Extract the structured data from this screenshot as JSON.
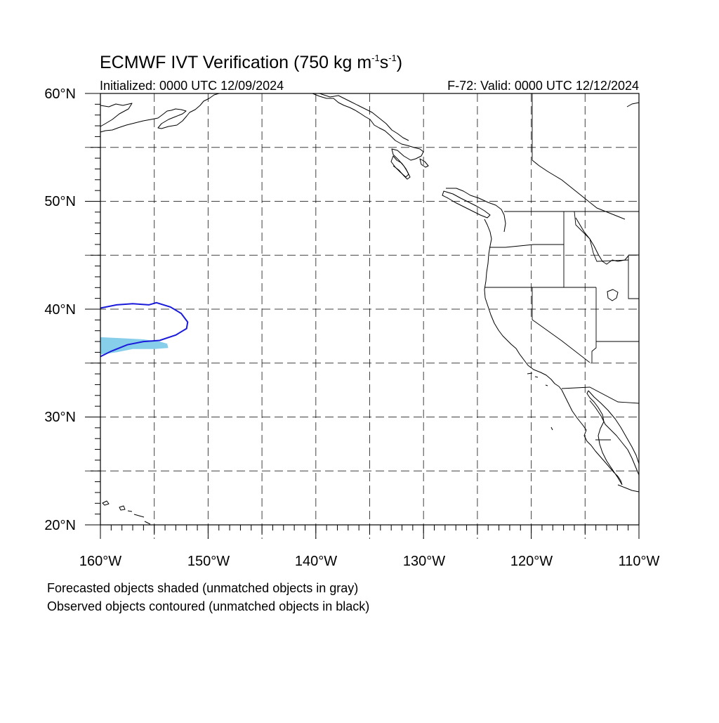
{
  "title_main": "ECMWF IVT Verification (750 kg m",
  "title_sup1": "-1",
  "title_mid": "s",
  "title_sup2": "-1",
  "title_end": ")",
  "initialized": "Initialized: 0000 UTC 12/09/2024",
  "valid": "F-72: Valid: 0000 UTC 12/12/2024",
  "map_extent": {
    "lon_min": -160,
    "lon_max": -110,
    "lat_min": 20,
    "lat_max": 60
  },
  "lat_labels": [
    "20°N",
    "30°N",
    "40°N",
    "50°N",
    "60°N"
  ],
  "lon_labels": [
    "160°W",
    "150°W",
    "140°W",
    "130°W",
    "120°W",
    "110°W"
  ],
  "colors": {
    "forecast_fill": "#87ceeb",
    "observed_contour": "#1a1adb",
    "coastline": "#000000"
  },
  "forecast_object": {
    "lonlat": [
      [
        -160,
        37.4
      ],
      [
        -158,
        37.3
      ],
      [
        -156,
        37.2
      ],
      [
        -154.5,
        37.0
      ],
      [
        -153.8,
        36.8
      ],
      [
        -153.7,
        36.4
      ],
      [
        -155,
        36.3
      ],
      [
        -157,
        36.3
      ],
      [
        -158.5,
        36.0
      ],
      [
        -160,
        35.8
      ]
    ]
  },
  "observed_object": {
    "lonlat": [
      [
        -160,
        40.1
      ],
      [
        -158.5,
        40.4
      ],
      [
        -157,
        40.5
      ],
      [
        -155.5,
        40.4
      ],
      [
        -154.8,
        40.6
      ],
      [
        -153.5,
        40.2
      ],
      [
        -152.5,
        39.6
      ],
      [
        -151.9,
        38.8
      ],
      [
        -152.0,
        38.2
      ],
      [
        -153.0,
        37.6
      ],
      [
        -154.5,
        37.1
      ],
      [
        -156,
        37.0
      ],
      [
        -157.5,
        36.7
      ],
      [
        -159,
        36.1
      ],
      [
        -160,
        35.6
      ]
    ]
  },
  "notes": [
    "Forecasted objects shaded (unmatched objects in gray)",
    "Observed objects contoured (unmatched objects in black)"
  ]
}
